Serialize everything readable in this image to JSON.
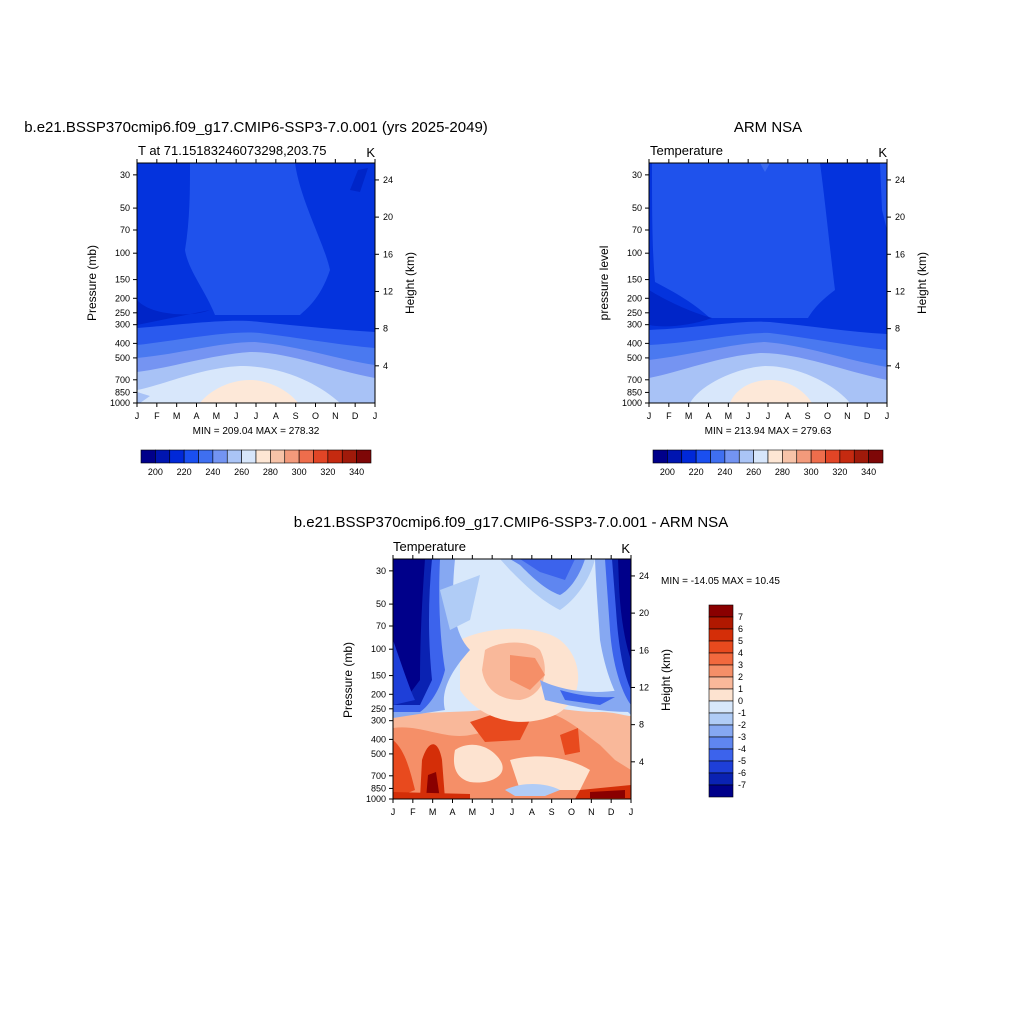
{
  "panels": [
    {
      "title": "b.e21.BSSP370cmip6.f09_g17.CMIP6-SSP3-7.0.001 (yrs 2025-2049)",
      "subtitle": "T at 71.15183246073298,203.75",
      "units": "K",
      "ylabel_left": "Pressure (mb)",
      "ylabel_right": "Height (km)",
      "minmax": "MIN = 209.04 MAX = 278.32"
    },
    {
      "title": "ARM NSA",
      "subtitle": "Temperature",
      "units": "K",
      "ylabel_left": "pressure level",
      "ylabel_right": "Height (km)",
      "minmax": "MIN = 213.94 MAX = 279.63"
    },
    {
      "title": "b.e21.BSSP370cmip6.f09_g17.CMIP6-SSP3-7.0.001 - ARM NSA",
      "subtitle": "Temperature",
      "units": "K",
      "ylabel_left": "Pressure (mb)",
      "ylabel_right": "Height (km)",
      "minmax": "MIN = -14.05 MAX =  10.45"
    }
  ],
  "chart_data": [
    {
      "type": "heatmap",
      "title": "b.e21.BSSP370cmip6.f09_g17.CMIP6-SSP3-7.0.001 (yrs 2025-2049)",
      "subtitle": "T at 71.15183246073298,203.75",
      "x_tick_labels": [
        "J",
        "F",
        "M",
        "A",
        "M",
        "J",
        "J",
        "A",
        "S",
        "O",
        "N",
        "D",
        "J"
      ],
      "pressure_ticks": [
        30,
        50,
        70,
        100,
        150,
        200,
        250,
        300,
        400,
        500,
        700,
        850,
        1000
      ],
      "height_ticks": [
        4,
        8,
        12,
        16,
        20,
        24
      ],
      "xlabel": "",
      "ylabel": "Pressure (mb)",
      "ylabel_right": "Height (km)",
      "colorbar_ticks": [
        200,
        220,
        240,
        260,
        280,
        300,
        320,
        340
      ],
      "colorbar_colors": [
        "#00008a",
        "#0015b0",
        "#0028d8",
        "#1a4ff0",
        "#3f6ff0",
        "#7394f2",
        "#aac4f6",
        "#d7e6fb",
        "#fde6d4",
        "#f7c3a8",
        "#f39a7b",
        "#ee6d4c",
        "#e24526",
        "#c52a10",
        "#a01a0a",
        "#7e0707"
      ],
      "min": 209.04,
      "max": 278.32,
      "units": "K"
    },
    {
      "type": "heatmap",
      "title": "ARM NSA",
      "subtitle": "Temperature",
      "x_tick_labels": [
        "J",
        "F",
        "M",
        "A",
        "M",
        "J",
        "J",
        "A",
        "S",
        "O",
        "N",
        "D",
        "J"
      ],
      "pressure_ticks": [
        30,
        50,
        70,
        100,
        150,
        200,
        250,
        300,
        400,
        500,
        700,
        850,
        1000
      ],
      "height_ticks": [
        4,
        8,
        12,
        16,
        20,
        24
      ],
      "xlabel": "",
      "ylabel": "pressure level",
      "ylabel_right": "Height (km)",
      "colorbar_ticks": [
        200,
        220,
        240,
        260,
        280,
        300,
        320,
        340
      ],
      "colorbar_colors": [
        "#00008a",
        "#0015b0",
        "#0028d8",
        "#1a4ff0",
        "#3f6ff0",
        "#7394f2",
        "#aac4f6",
        "#d7e6fb",
        "#fde6d4",
        "#f7c3a8",
        "#f39a7b",
        "#ee6d4c",
        "#e24526",
        "#c52a10",
        "#a01a0a",
        "#7e0707"
      ],
      "min": 213.94,
      "max": 279.63,
      "units": "K"
    },
    {
      "type": "heatmap",
      "title": "b.e21.BSSP370cmip6.f09_g17.CMIP6-SSP3-7.0.001 - ARM NSA",
      "subtitle": "Temperature",
      "x_tick_labels": [
        "J",
        "F",
        "M",
        "A",
        "M",
        "J",
        "J",
        "A",
        "S",
        "O",
        "N",
        "D",
        "J"
      ],
      "pressure_ticks": [
        30,
        50,
        70,
        100,
        150,
        200,
        250,
        300,
        400,
        500,
        700,
        850,
        1000
      ],
      "height_ticks": [
        4,
        8,
        12,
        16,
        20,
        24
      ],
      "xlabel": "",
      "ylabel": "Pressure (mb)",
      "ylabel_right": "Height (km)",
      "colorbar_ticks": [
        7,
        6,
        5,
        4,
        3,
        2,
        1,
        0,
        -1,
        -2,
        -3,
        -4,
        -5,
        -6,
        -7
      ],
      "colorbar_colors": [
        "#8a0000",
        "#b01800",
        "#d42e08",
        "#e84a1e",
        "#f2693e",
        "#f58f68",
        "#f9b89a",
        "#fde3d0",
        "#d8e8fb",
        "#b0ccf6",
        "#86a8f2",
        "#5f86f0",
        "#3c63ec",
        "#1e3fd8",
        "#0a22b2",
        "#00008a"
      ],
      "min": -14.05,
      "max": 10.45,
      "units": "K"
    }
  ]
}
